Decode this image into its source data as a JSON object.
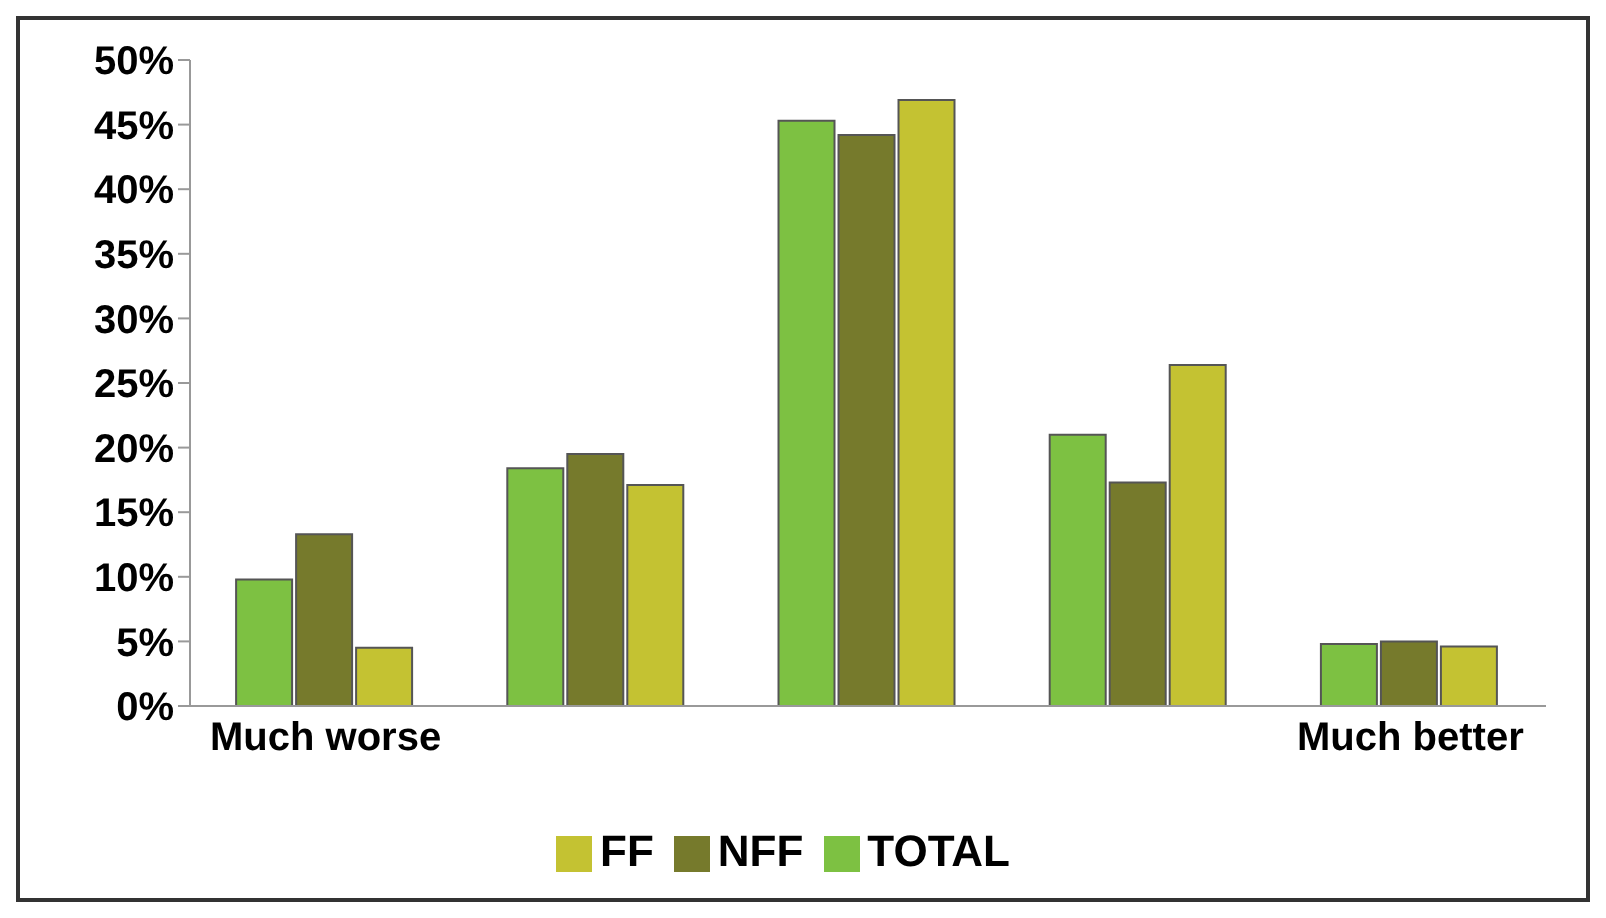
{
  "chart_data": {
    "type": "bar",
    "categories": [
      "Much worse",
      null,
      null,
      null,
      "Much better"
    ],
    "series": [
      {
        "name": "TOTAL",
        "color": "#7dc142",
        "values": [
          9.8,
          18.4,
          45.3,
          21.0,
          4.8
        ]
      },
      {
        "name": "NFF",
        "color": "#767a2c",
        "values": [
          13.3,
          19.5,
          44.2,
          17.3,
          5.0
        ]
      },
      {
        "name": "FF",
        "color": "#c4c232",
        "values": [
          4.5,
          17.1,
          46.9,
          26.4,
          4.6
        ]
      }
    ],
    "ylim": [
      0,
      50
    ],
    "yticks": [
      {
        "value": 0,
        "label": "0%"
      },
      {
        "value": 5,
        "label": "5%"
      },
      {
        "value": 10,
        "label": "10%"
      },
      {
        "value": 15,
        "label": "15%"
      },
      {
        "value": 20,
        "label": "20%"
      },
      {
        "value": 25,
        "label": "25%"
      },
      {
        "value": 30,
        "label": "30%"
      },
      {
        "value": 35,
        "label": "35%"
      },
      {
        "value": 40,
        "label": "40%"
      },
      {
        "value": 45,
        "label": "45%"
      },
      {
        "value": 50,
        "label": "50%"
      }
    ],
    "grid": false,
    "legend": "bottom"
  }
}
